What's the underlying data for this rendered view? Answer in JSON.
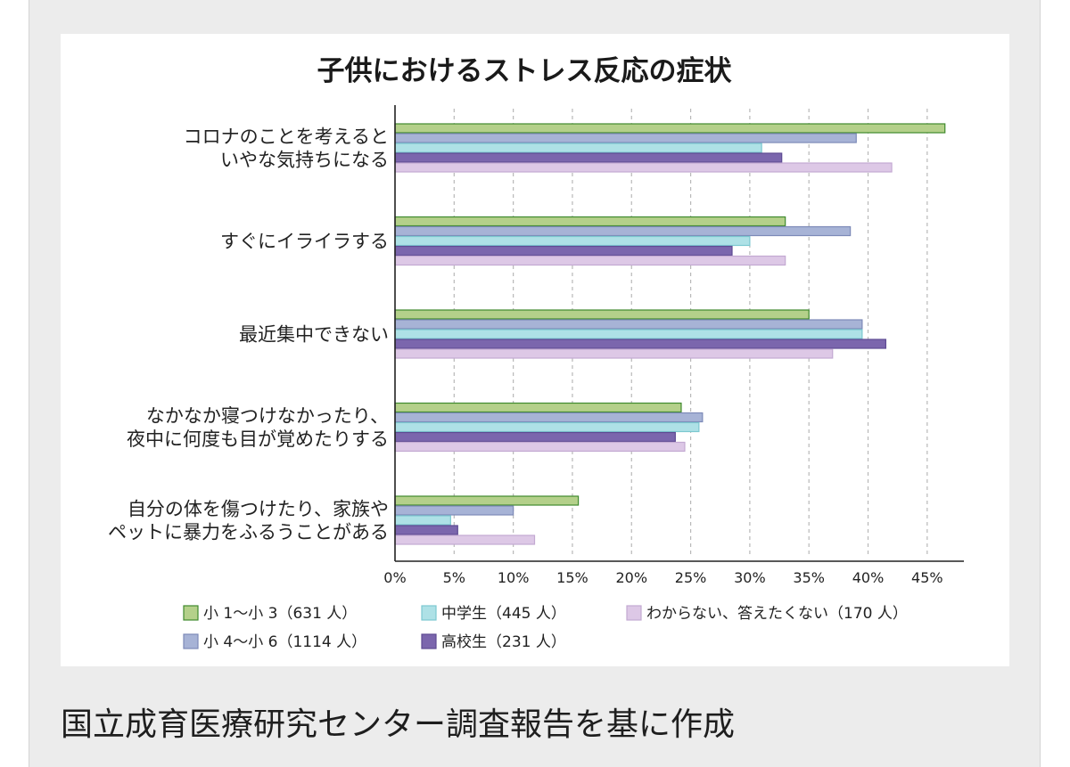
{
  "chart_data": {
    "type": "bar",
    "orientation": "horizontal",
    "title": "子供におけるストレス反応の症状",
    "categories": [
      [
        "コロナのことを考えると",
        "いやな気持ちになる"
      ],
      [
        "すぐにイライラする"
      ],
      [
        "最近集中できない"
      ],
      [
        "なかなか寝つけなかったり、",
        "夜中に何度も目が覚めたりする"
      ],
      [
        "自分の体を傷つけたり、家族や",
        "ペットに暴力をふるうことがある"
      ]
    ],
    "series": [
      {
        "name": "小 1〜小 3（631 人）",
        "color": "#b4d08a",
        "stroke": "#3f8a2e",
        "values": [
          46.5,
          33,
          35,
          24.2,
          15.5
        ]
      },
      {
        "name": "小 4〜小 6（1114 人）",
        "color": "#a7b3d6",
        "stroke": "#7d8ab8",
        "values": [
          39,
          38.5,
          39.5,
          26,
          10
        ]
      },
      {
        "name": "中学生（445 人）",
        "color": "#aee1e6",
        "stroke": "#7cc8d0",
        "values": [
          31,
          30,
          39.5,
          25.7,
          4.7
        ]
      },
      {
        "name": "高校生（231 人）",
        "color": "#7b66ad",
        "stroke": "#5e4b93",
        "values": [
          32.7,
          28.5,
          41.5,
          23.7,
          5.3
        ]
      },
      {
        "name": "わからない、答えたくない（170 人）",
        "color": "#ddc8e6",
        "stroke": "#c3a9d2",
        "values": [
          42,
          33,
          37,
          24.5,
          11.8
        ]
      }
    ],
    "xlim": [
      0,
      47.5
    ],
    "xticks": [
      0,
      5,
      10,
      15,
      20,
      25,
      30,
      35,
      40,
      45
    ],
    "xtick_labels": [
      "0%",
      "5%",
      "10%",
      "15%",
      "20%",
      "25%",
      "30%",
      "35%",
      "40%",
      "45%"
    ],
    "grid": "vertical dashed",
    "legend": "bottom"
  },
  "caption": "国立成育医療研究センター調査報告を基に作成"
}
